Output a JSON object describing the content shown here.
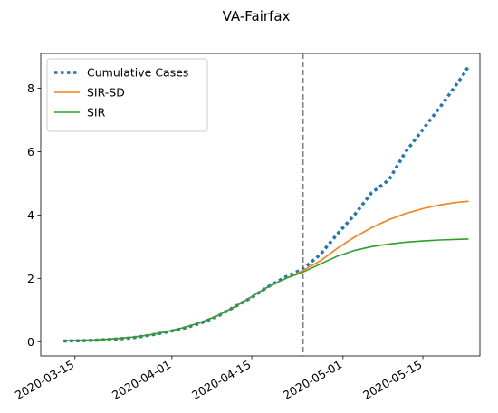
{
  "chart_data": {
    "type": "line",
    "title": "VA-Fairfax",
    "xlabel": "",
    "ylabel": "",
    "x_type": "date",
    "xlim": [
      "2020-03-09",
      "2020-05-25"
    ],
    "ylim": [
      -0.45,
      9.1
    ],
    "x_ticks": [
      "2020-03-15",
      "2020-04-01",
      "2020-04-15",
      "2020-05-01",
      "2020-05-15"
    ],
    "y_ticks": [
      0,
      2,
      4,
      6,
      8
    ],
    "legend_position": "top-left",
    "vline": {
      "x": "2020-04-24",
      "color": "#7f7f7f",
      "style": "dashed"
    },
    "series": [
      {
        "name": "Cumulative Cases",
        "color": "#1f77b4",
        "style": "dotted",
        "points": [
          [
            "2020-03-13",
            0.02
          ],
          [
            "2020-03-16",
            0.03
          ],
          [
            "2020-03-19",
            0.05
          ],
          [
            "2020-03-22",
            0.08
          ],
          [
            "2020-03-25",
            0.12
          ],
          [
            "2020-03-28",
            0.2
          ],
          [
            "2020-03-31",
            0.3
          ],
          [
            "2020-04-03",
            0.42
          ],
          [
            "2020-04-06",
            0.58
          ],
          [
            "2020-04-09",
            0.8
          ],
          [
            "2020-04-12",
            1.1
          ],
          [
            "2020-04-15",
            1.4
          ],
          [
            "2020-04-18",
            1.75
          ],
          [
            "2020-04-21",
            2.05
          ],
          [
            "2020-04-24",
            2.3
          ],
          [
            "2020-04-27",
            2.75
          ],
          [
            "2020-04-30",
            3.4
          ],
          [
            "2020-05-03",
            4.0
          ],
          [
            "2020-05-06",
            4.7
          ],
          [
            "2020-05-09",
            5.1
          ],
          [
            "2020-05-12",
            6.0
          ],
          [
            "2020-05-15",
            6.7
          ],
          [
            "2020-05-18",
            7.4
          ],
          [
            "2020-05-20",
            7.9
          ],
          [
            "2020-05-22",
            8.4
          ],
          [
            "2020-05-23",
            8.7
          ]
        ]
      },
      {
        "name": "SIR-SD",
        "color": "#ff7f0e",
        "style": "solid",
        "points": [
          [
            "2020-03-13",
            0.03
          ],
          [
            "2020-03-16",
            0.04
          ],
          [
            "2020-03-19",
            0.06
          ],
          [
            "2020-03-22",
            0.09
          ],
          [
            "2020-03-25",
            0.14
          ],
          [
            "2020-03-28",
            0.21
          ],
          [
            "2020-03-31",
            0.31
          ],
          [
            "2020-04-03",
            0.44
          ],
          [
            "2020-04-06",
            0.6
          ],
          [
            "2020-04-09",
            0.82
          ],
          [
            "2020-04-12",
            1.1
          ],
          [
            "2020-04-15",
            1.42
          ],
          [
            "2020-04-18",
            1.75
          ],
          [
            "2020-04-21",
            2.0
          ],
          [
            "2020-04-24",
            2.25
          ],
          [
            "2020-04-27",
            2.55
          ],
          [
            "2020-04-30",
            2.95
          ],
          [
            "2020-05-03",
            3.3
          ],
          [
            "2020-05-06",
            3.6
          ],
          [
            "2020-05-09",
            3.85
          ],
          [
            "2020-05-12",
            4.05
          ],
          [
            "2020-05-15",
            4.2
          ],
          [
            "2020-05-18",
            4.32
          ],
          [
            "2020-05-21",
            4.4
          ],
          [
            "2020-05-23",
            4.43
          ]
        ]
      },
      {
        "name": "SIR",
        "color": "#2ca02c",
        "style": "solid",
        "points": [
          [
            "2020-03-13",
            0.03
          ],
          [
            "2020-03-16",
            0.04
          ],
          [
            "2020-03-19",
            0.06
          ],
          [
            "2020-03-22",
            0.09
          ],
          [
            "2020-03-25",
            0.14
          ],
          [
            "2020-03-28",
            0.21
          ],
          [
            "2020-03-31",
            0.31
          ],
          [
            "2020-04-03",
            0.44
          ],
          [
            "2020-04-06",
            0.6
          ],
          [
            "2020-04-09",
            0.82
          ],
          [
            "2020-04-12",
            1.1
          ],
          [
            "2020-04-15",
            1.42
          ],
          [
            "2020-04-18",
            1.75
          ],
          [
            "2020-04-21",
            2.0
          ],
          [
            "2020-04-24",
            2.2
          ],
          [
            "2020-04-27",
            2.45
          ],
          [
            "2020-04-30",
            2.7
          ],
          [
            "2020-05-03",
            2.88
          ],
          [
            "2020-05-06",
            3.0
          ],
          [
            "2020-05-09",
            3.08
          ],
          [
            "2020-05-12",
            3.14
          ],
          [
            "2020-05-15",
            3.18
          ],
          [
            "2020-05-18",
            3.21
          ],
          [
            "2020-05-21",
            3.23
          ],
          [
            "2020-05-23",
            3.24
          ]
        ]
      }
    ]
  }
}
